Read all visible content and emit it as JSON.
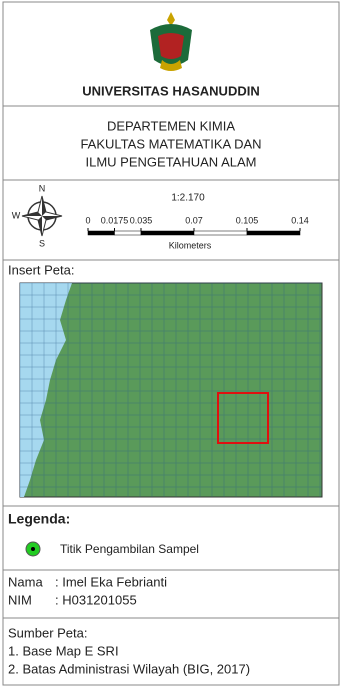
{
  "header": {
    "university": "UNIVERSITAS HASANUDDIN",
    "department": [
      "DEPARTEMEN KIMIA",
      "FAKULTAS MATEMATIKA DAN",
      "ILMU PENGETAHUAN ALAM"
    ]
  },
  "scale": {
    "ratio": "1:2.170",
    "ticks": [
      0,
      0.0175,
      0.035,
      0.07,
      0.105,
      0.14
    ],
    "unit": "Kilometers",
    "compass": {
      "north": "N",
      "west": "W",
      "south": "S"
    }
  },
  "inset": {
    "title": "Insert Peta:"
  },
  "legend": {
    "title": "Legenda:",
    "items": [
      "Titik Pengambilan Sampel"
    ]
  },
  "author": {
    "name_label": "Nama",
    "name": ": Imel Eka Febrianti",
    "id_label": "NIM",
    "id": ": H031201055"
  },
  "sources": {
    "title": "Sumber Peta:",
    "items": [
      "1. Base Map E SRI",
      "2. Batas Administrasi Wilayah (BIG, 2017)"
    ]
  }
}
